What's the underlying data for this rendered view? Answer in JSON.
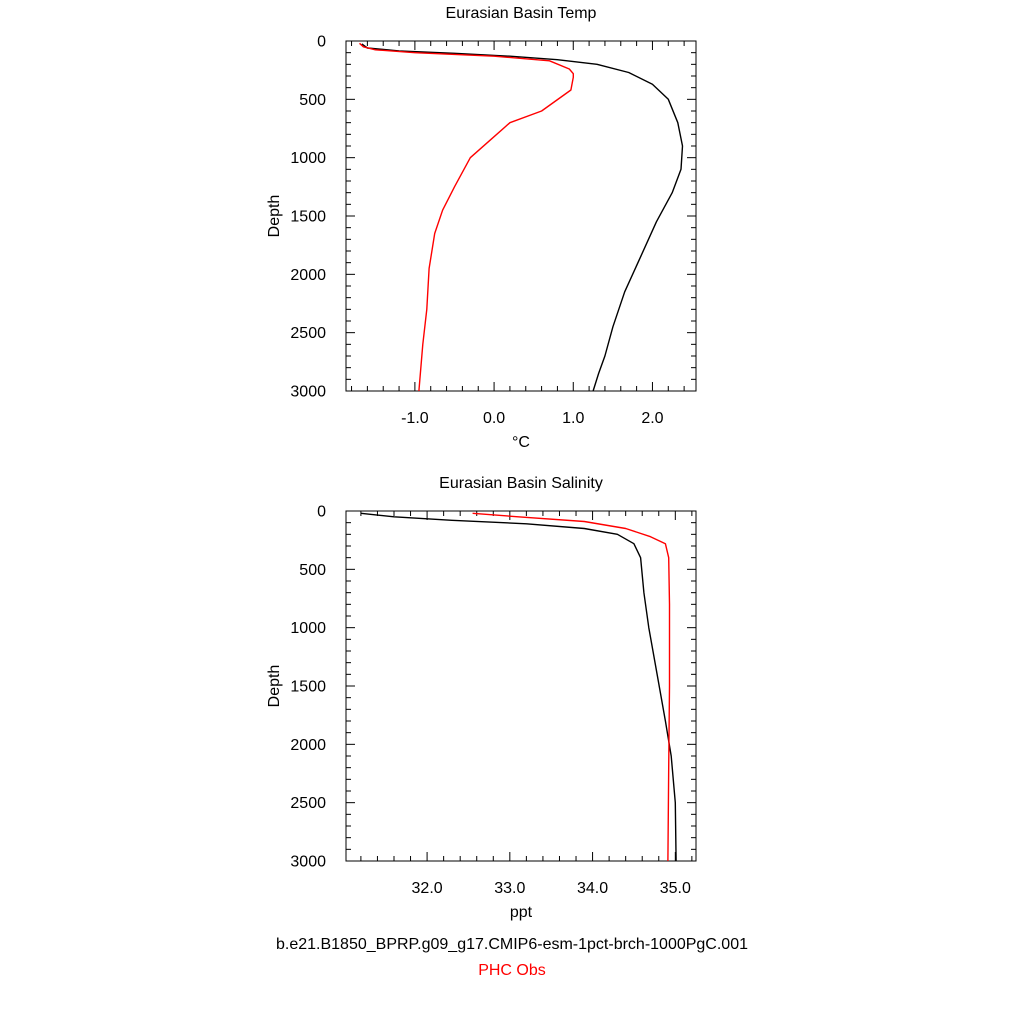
{
  "chart_data": [
    {
      "type": "line",
      "title": "Eurasian Basin Temp",
      "xlabel": "°C",
      "ylabel": "Depth",
      "xlim": [
        -1.87,
        2.55
      ],
      "ylim": [
        3000,
        0
      ],
      "x_ticks": [
        -1.0,
        0.0,
        1.0,
        2.0
      ],
      "x_tick_labels": [
        "-1.0",
        "0.0",
        "1.0",
        "2.0"
      ],
      "y_ticks": [
        0,
        500,
        1000,
        1500,
        2000,
        2500,
        3000
      ],
      "y_tick_labels": [
        "0",
        "500",
        "1000",
        "1500",
        "2000",
        "2500",
        "3000"
      ],
      "series": [
        {
          "name": "b.e21.B1850_BPRP.g09_g17.CMIP6-esm-1pct-brch-1000PgC.001",
          "color": "#000000",
          "points": [
            [
              -1.67,
              25
            ],
            [
              -1.6,
              60
            ],
            [
              -1.2,
              85
            ],
            [
              -0.5,
              105
            ],
            [
              0.2,
              130
            ],
            [
              0.8,
              160
            ],
            [
              1.3,
              200
            ],
            [
              1.7,
              270
            ],
            [
              2.0,
              370
            ],
            [
              2.2,
              500
            ],
            [
              2.32,
              700
            ],
            [
              2.38,
              900
            ],
            [
              2.36,
              1100
            ],
            [
              2.25,
              1300
            ],
            [
              2.05,
              1550
            ],
            [
              1.85,
              1850
            ],
            [
              1.65,
              2150
            ],
            [
              1.5,
              2450
            ],
            [
              1.4,
              2700
            ],
            [
              1.32,
              2850
            ],
            [
              1.25,
              3000
            ]
          ]
        },
        {
          "name": "PHC Obs",
          "color": "#ff0000",
          "points": [
            [
              -1.7,
              20
            ],
            [
              -1.65,
              50
            ],
            [
              -1.5,
              75
            ],
            [
              -1.0,
              100
            ],
            [
              0.0,
              130
            ],
            [
              0.7,
              170
            ],
            [
              0.95,
              240
            ],
            [
              1.0,
              280
            ],
            [
              1.0,
              310
            ],
            [
              0.97,
              420
            ],
            [
              0.6,
              600
            ],
            [
              0.2,
              700
            ],
            [
              -0.05,
              850
            ],
            [
              -0.3,
              1000
            ],
            [
              -0.5,
              1250
            ],
            [
              -0.65,
              1450
            ],
            [
              -0.75,
              1650
            ],
            [
              -0.82,
              1950
            ],
            [
              -0.85,
              2300
            ],
            [
              -0.9,
              2600
            ],
            [
              -0.95,
              3000
            ]
          ]
        }
      ]
    },
    {
      "type": "line",
      "title": "Eurasian Basin Salinity",
      "xlabel": "ppt",
      "ylabel": "Depth",
      "xlim": [
        31.02,
        35.25
      ],
      "ylim": [
        3000,
        0
      ],
      "x_ticks": [
        32.0,
        33.0,
        34.0,
        35.0
      ],
      "x_tick_labels": [
        "32.0",
        "33.0",
        "34.0",
        "35.0"
      ],
      "y_ticks": [
        0,
        500,
        1000,
        1500,
        2000,
        2500,
        3000
      ],
      "y_tick_labels": [
        "0",
        "500",
        "1000",
        "1500",
        "2000",
        "2500",
        "3000"
      ],
      "series": [
        {
          "name": "b.e21.B1850_BPRP.g09_g17.CMIP6-esm-1pct-brch-1000PgC.001",
          "color": "#000000",
          "points": [
            [
              31.2,
              20
            ],
            [
              31.6,
              50
            ],
            [
              32.3,
              80
            ],
            [
              33.2,
              110
            ],
            [
              33.9,
              150
            ],
            [
              34.3,
              200
            ],
            [
              34.5,
              280
            ],
            [
              34.58,
              400
            ],
            [
              34.62,
              700
            ],
            [
              34.68,
              1000
            ],
            [
              34.78,
              1400
            ],
            [
              34.88,
              1800
            ],
            [
              34.95,
              2100
            ],
            [
              35.0,
              2500
            ],
            [
              35.01,
              3000
            ]
          ]
        },
        {
          "name": "PHC Obs",
          "color": "#ff0000",
          "points": [
            [
              32.55,
              20
            ],
            [
              33.1,
              50
            ],
            [
              33.9,
              90
            ],
            [
              34.4,
              150
            ],
            [
              34.7,
              220
            ],
            [
              34.88,
              280
            ],
            [
              34.92,
              400
            ],
            [
              34.93,
              800
            ],
            [
              34.93,
              1500
            ],
            [
              34.92,
              2200
            ],
            [
              34.91,
              3000
            ]
          ]
        }
      ]
    }
  ],
  "legend": {
    "model": "b.e21.B1850_BPRP.g09_g17.CMIP6-esm-1pct-brch-1000PgC.001",
    "model_color": "#000000",
    "obs": "PHC Obs",
    "obs_color": "#ff0000"
  }
}
